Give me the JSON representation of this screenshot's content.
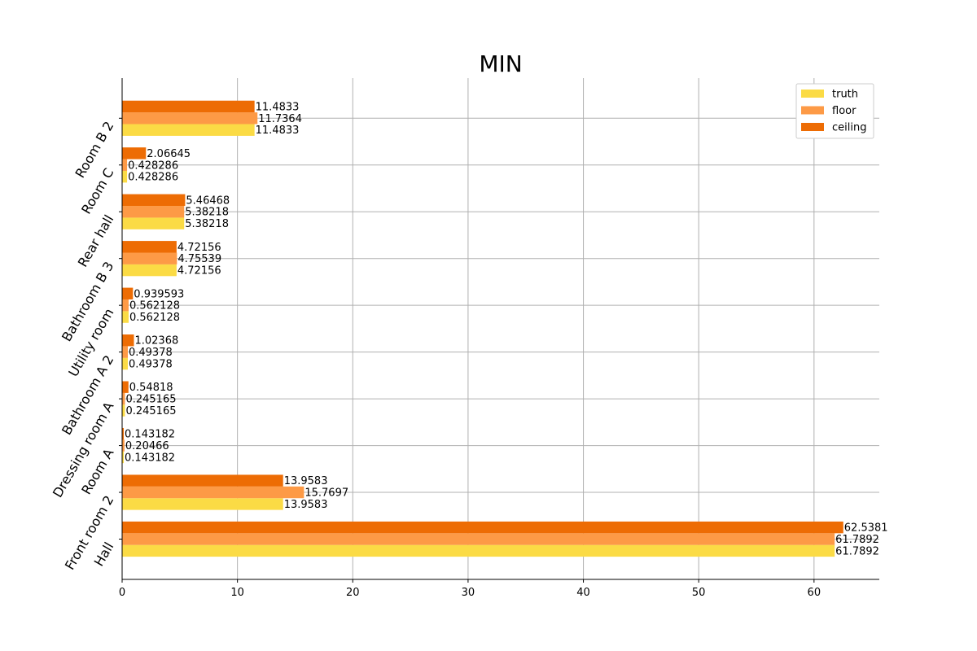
{
  "chart_data": {
    "type": "bar",
    "orientation": "horizontal",
    "title": "MIN",
    "xlabel": "",
    "ylabel": "",
    "xlim": [
      0,
      65.66
    ],
    "xticks": [
      0,
      10,
      20,
      30,
      40,
      50,
      60
    ],
    "grid": true,
    "legend_position": "top-right",
    "categories": [
      "Hall",
      "Front room 2",
      "Room A",
      "Dressing room A",
      "Bathroom A 2",
      "Utility room",
      "Bathroom B 3",
      "Rear hall",
      "Room C",
      "Room B 2"
    ],
    "series": [
      {
        "name": "truth",
        "color": "#fbdb45",
        "values": [
          61.7892,
          13.9583,
          0.143182,
          0.245165,
          0.49378,
          0.562128,
          4.72156,
          5.38218,
          0.428286,
          11.4833
        ],
        "labels": [
          "61.7892",
          "13.9583",
          "0.143182",
          "0.245165",
          "0.49378",
          "0.562128",
          "4.72156",
          "5.38218",
          "0.428286",
          "11.4833"
        ]
      },
      {
        "name": "floor",
        "color": "#fd9a46",
        "values": [
          61.7892,
          15.7697,
          0.20466,
          0.245165,
          0.49378,
          0.562128,
          4.75539,
          5.38218,
          0.428286,
          11.7364
        ],
        "labels": [
          "61.7892",
          "15.7697",
          "0.20466",
          "0.245165",
          "0.49378",
          "0.562128",
          "4.75539",
          "5.38218",
          "0.428286",
          "11.7364"
        ]
      },
      {
        "name": "ceiling",
        "color": "#ed6c04",
        "values": [
          62.5381,
          13.9583,
          0.143182,
          0.54818,
          1.02368,
          0.939593,
          4.72156,
          5.46468,
          2.06645,
          11.4833
        ],
        "labels": [
          "62.5381",
          "13.9583",
          "0.143182",
          "0.54818",
          "1.02368",
          "0.939593",
          "4.72156",
          "5.46468",
          "2.06645",
          "11.4833"
        ]
      }
    ]
  }
}
